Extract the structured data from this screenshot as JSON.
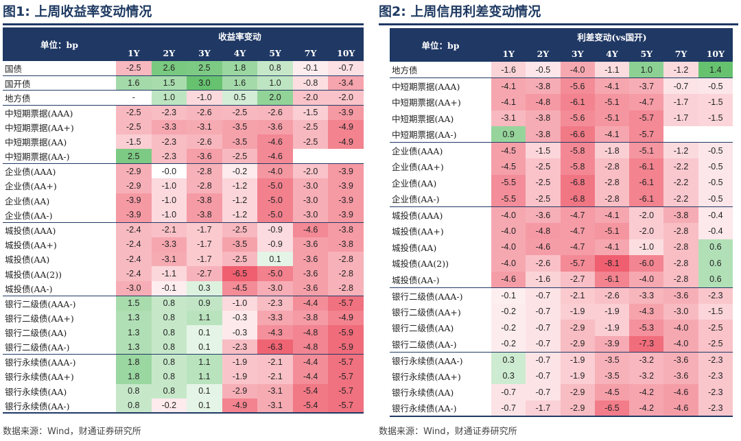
{
  "colors": {
    "header": "#1f3864",
    "neg": "#eb3c50",
    "pos": "#46b450"
  },
  "left": {
    "title": "图1:   上周收益率变动情况",
    "unit_label": "单位：bp",
    "group_label": "收益率变动",
    "columns": [
      "1Y",
      "2Y",
      "3Y",
      "4Y",
      "5Y",
      "7Y",
      "10Y"
    ],
    "source": "数据来源：Wind，财通证券研究所",
    "rows": [
      {
        "label": "国债",
        "cells": [
          "-2.5",
          "2.6",
          "2.5",
          "1.8",
          "0.8",
          "-0.1",
          "-0.7"
        ]
      },
      {
        "label": "国开债",
        "cells": [
          "1.6",
          "1.5",
          "3.0",
          "1.6",
          "1.0",
          "-0.8",
          "-3.4"
        ]
      },
      {
        "label": "地方债",
        "cells": [
          "-",
          "1.0",
          "-1.0",
          "0.5",
          "2.0",
          "-2.0",
          "-2.0"
        ]
      },
      {
        "label": "中短期票据(AAA)",
        "cells": [
          "-2.5",
          "-2.3",
          "-2.6",
          "-2.5",
          "-2.6",
          "-1.5",
          "-3.9"
        ]
      },
      {
        "label": "中短期票据(AA+)",
        "cells": [
          "-2.5",
          "-3.3",
          "-3.1",
          "-3.5",
          "-3.6",
          "-2.5",
          "-4.9"
        ]
      },
      {
        "label": "中短期票据(AA)",
        "cells": [
          "-1.5",
          "-2.3",
          "-2.6",
          "-3.5",
          "-4.6",
          "-2.5",
          "-4.9"
        ]
      },
      {
        "label": "中短期票据(AA-)",
        "cells": [
          "2.5",
          "-2.3",
          "-3.6",
          "-2.5",
          "-4.6",
          "",
          ""
        ]
      },
      {
        "label": "企业债(AAA)",
        "cells": [
          "-2.9",
          "-0.0",
          "-2.8",
          "-0.2",
          "-4.0",
          "-2.0",
          "-3.9"
        ]
      },
      {
        "label": "企业债(AA+)",
        "cells": [
          "-2.9",
          "-1.0",
          "-2.8",
          "-1.2",
          "-5.0",
          "-3.0",
          "-3.9"
        ]
      },
      {
        "label": "企业债(AA)",
        "cells": [
          "-3.9",
          "-1.0",
          "-3.8",
          "-1.2",
          "-5.0",
          "-3.0",
          "-3.9"
        ]
      },
      {
        "label": "企业债(AA-)",
        "cells": [
          "-3.9",
          "-1.0",
          "-3.8",
          "-1.2",
          "-5.0",
          "-3.0",
          "-3.9"
        ]
      },
      {
        "label": "城投债(AAA)",
        "cells": [
          "-2.4",
          "-2.1",
          "-1.7",
          "-2.5",
          "-0.9",
          "-4.6",
          "-3.8"
        ]
      },
      {
        "label": "城投债(AA+)",
        "cells": [
          "-2.4",
          "-3.3",
          "-1.7",
          "-3.5",
          "-0.9",
          "-3.6",
          "-3.8"
        ]
      },
      {
        "label": "城投债(AA)",
        "cells": [
          "-2.4",
          "-3.1",
          "-1.7",
          "-2.5",
          "0.1",
          "-3.6",
          "-2.8"
        ]
      },
      {
        "label": "城投债(AA(2))",
        "cells": [
          "-2.4",
          "-1.1",
          "-2.7",
          "-6.5",
          "-5.0",
          "-3.6",
          "-2.8"
        ]
      },
      {
        "label": "城投债(AA-)",
        "cells": [
          "-3.0",
          "-0.1",
          "0.3",
          "-4.5",
          "-3.0",
          "-3.6",
          "-2.8"
        ]
      },
      {
        "label": "银行二级债(AAA-)",
        "cells": [
          "1.5",
          "0.8",
          "0.9",
          "-1.0",
          "-2.3",
          "-4.4",
          "-5.7"
        ]
      },
      {
        "label": "银行二级债(AA+)",
        "cells": [
          "1.3",
          "0.8",
          "1.1",
          "-0.3",
          "-3.3",
          "-3.8",
          "-4.9"
        ]
      },
      {
        "label": "银行二级债(AA)",
        "cells": [
          "1.3",
          "0.8",
          "0.1",
          "-0.3",
          "-4.3",
          "-4.8",
          "-5.9"
        ]
      },
      {
        "label": "银行二级债(AA-)",
        "cells": [
          "1.3",
          "0.8",
          "0.1",
          "-2.3",
          "-6.3",
          "-4.8",
          "-5.9"
        ]
      },
      {
        "label": "银行永续债(AAA-)",
        "cells": [
          "1.8",
          "0.8",
          "1.1",
          "-1.9",
          "-2.1",
          "-4.4",
          "-5.7"
        ]
      },
      {
        "label": "银行永续债(AA+)",
        "cells": [
          "1.8",
          "0.8",
          "1.1",
          "-1.9",
          "-2.1",
          "-4.4",
          "-5.7"
        ]
      },
      {
        "label": "银行永续债(AA)",
        "cells": [
          "0.8",
          "0.8",
          "0.1",
          "-2.9",
          "-3.1",
          "-5.4",
          "-5.7"
        ]
      },
      {
        "label": "银行永续债(AA-)",
        "cells": [
          "0.8",
          "-0.2",
          "0.1",
          "-4.9",
          "-3.1",
          "-5.4",
          "-5.7"
        ]
      }
    ]
  },
  "right": {
    "title": "图2:   上周信用利差变动情况",
    "unit_label": "单位：bp",
    "group_label": "利差变动(vs国开)",
    "columns": [
      "1Y",
      "2Y",
      "3Y",
      "4Y",
      "5Y",
      "7Y",
      "10Y"
    ],
    "source": "数据来源：Wind，财通证券研究所",
    "rows": [
      {
        "label": "地方债",
        "cells": [
          "-1.6",
          "-0.5",
          "-4.0",
          "-1.1",
          "1.0",
          "-1.2",
          "1.4"
        ]
      },
      {
        "label": "中短期票据(AAA)",
        "cells": [
          "-4.1",
          "-3.8",
          "-5.6",
          "-4.1",
          "-3.7",
          "-0.7",
          "-0.5"
        ]
      },
      {
        "label": "中短期票据(AA+)",
        "cells": [
          "-4.1",
          "-4.8",
          "-6.1",
          "-5.1",
          "-4.7",
          "-1.7",
          "-1.5"
        ]
      },
      {
        "label": "中短期票据(AA)",
        "cells": [
          "-3.1",
          "-3.8",
          "-5.6",
          "-5.1",
          "-5.7",
          "-1.7",
          "-1.5"
        ]
      },
      {
        "label": "中短期票据(AA-)",
        "cells": [
          "0.9",
          "-3.8",
          "-6.6",
          "-4.1",
          "-5.7",
          "",
          ""
        ]
      },
      {
        "label": "企业债(AAA)",
        "cells": [
          "-4.5",
          "-1.5",
          "-5.8",
          "-1.8",
          "-5.1",
          "-1.2",
          "-0.5"
        ]
      },
      {
        "label": "企业债(AA+)",
        "cells": [
          "-4.5",
          "-2.5",
          "-5.8",
          "-2.8",
          "-6.1",
          "-2.2",
          "-0.5"
        ]
      },
      {
        "label": "企业债(AA)",
        "cells": [
          "-5.5",
          "-2.5",
          "-6.8",
          "-2.8",
          "-6.1",
          "-2.2",
          "-0.5"
        ]
      },
      {
        "label": "企业债(AA-)",
        "cells": [
          "-5.5",
          "-2.5",
          "-6.8",
          "-2.8",
          "-6.1",
          "-2.2",
          "-0.5"
        ]
      },
      {
        "label": "城投债(AAA)",
        "cells": [
          "-4.0",
          "-3.6",
          "-4.7",
          "-4.1",
          "-2.0",
          "-3.8",
          "-0.4"
        ]
      },
      {
        "label": "城投债(AA+)",
        "cells": [
          "-4.0",
          "-4.8",
          "-4.7",
          "-5.1",
          "-2.0",
          "-2.8",
          "-0.4"
        ]
      },
      {
        "label": "城投债(AA)",
        "cells": [
          "-4.0",
          "-4.6",
          "-4.7",
          "-4.1",
          "-1.0",
          "-2.8",
          "0.6"
        ]
      },
      {
        "label": "城投债(AA(2))",
        "cells": [
          "-4.0",
          "-2.6",
          "-5.7",
          "-8.1",
          "-6.0",
          "-2.8",
          "0.6"
        ]
      },
      {
        "label": "城投债(AA-)",
        "cells": [
          "-4.6",
          "-1.6",
          "-2.7",
          "-6.1",
          "-4.0",
          "-2.8",
          "0.6"
        ]
      },
      {
        "label": "银行二级债(AAA-)",
        "cells": [
          "-0.1",
          "-0.7",
          "-2.1",
          "-2.6",
          "-3.3",
          "-3.6",
          "-2.3"
        ]
      },
      {
        "label": "银行二级债(AA+)",
        "cells": [
          "-0.2",
          "-0.7",
          "-1.9",
          "-1.9",
          "-4.3",
          "-3.0",
          "-1.5"
        ]
      },
      {
        "label": "银行二级债(AA)",
        "cells": [
          "-0.2",
          "-0.7",
          "-2.9",
          "-1.9",
          "-5.3",
          "-4.0",
          "-2.5"
        ]
      },
      {
        "label": "银行二级债(AA-)",
        "cells": [
          "-0.2",
          "-0.7",
          "-2.9",
          "-3.9",
          "-7.3",
          "-4.0",
          "-2.5"
        ]
      },
      {
        "label": "银行永续债(AAA-)",
        "cells": [
          "0.3",
          "-0.7",
          "-1.9",
          "-3.5",
          "-3.2",
          "-3.6",
          "-2.3"
        ]
      },
      {
        "label": "银行永续债(AA+)",
        "cells": [
          "0.3",
          "-0.7",
          "-1.9",
          "-3.5",
          "-3.2",
          "-3.6",
          "-2.3"
        ]
      },
      {
        "label": "银行永续债(AA)",
        "cells": [
          "-0.7",
          "-0.7",
          "-2.9",
          "-4.5",
          "-4.2",
          "-4.6",
          "-2.3"
        ]
      },
      {
        "label": "银行永续债(AA-)",
        "cells": [
          "-0.7",
          "-1.7",
          "-2.9",
          "-6.5",
          "-4.2",
          "-4.6",
          "-2.3"
        ]
      }
    ]
  }
}
